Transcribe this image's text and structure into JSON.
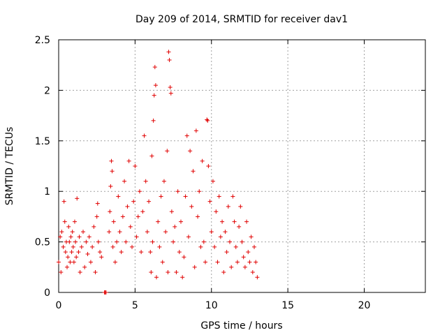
{
  "chart_data": {
    "type": "scatter",
    "title": "Day 209 of 2014, SRMTID for receiver dav1",
    "xlabel": "GPS time / hours",
    "ylabel": "SRMTID / TECUs",
    "xlim": [
      0,
      24
    ],
    "ylim": [
      0,
      2.5
    ],
    "grid": true,
    "marker": "+",
    "marker_color": "#e00000",
    "x_ticks": [
      0,
      5,
      10,
      15,
      20
    ],
    "x_tick_labels": [
      "0",
      "5",
      "10",
      "15",
      "20"
    ],
    "y_ticks": [
      0,
      0.5,
      1,
      1.5,
      2,
      2.5
    ],
    "y_tick_labels": [
      "0",
      "0.5",
      "1",
      "1.5",
      "2",
      "2.5"
    ],
    "series": [
      {
        "name": "dav1",
        "x": [
          0.0,
          0.1,
          0.15,
          0.2,
          0.3,
          0.35,
          0.4,
          0.45,
          0.5,
          0.55,
          0.6,
          0.65,
          0.7,
          0.75,
          0.8,
          0.85,
          0.9,
          0.95,
          1.0,
          1.05,
          1.1,
          1.15,
          1.2,
          1.3,
          1.35,
          1.4,
          1.5,
          1.6,
          1.7,
          1.8,
          1.9,
          2.0,
          2.1,
          2.2,
          2.3,
          2.4,
          2.5,
          2.55,
          2.6,
          2.7,
          2.8,
          3.0,
          3.05,
          3.1,
          3.3,
          3.35,
          3.4,
          3.45,
          3.5,
          3.55,
          3.6,
          3.7,
          3.8,
          3.9,
          4.0,
          4.1,
          4.2,
          4.3,
          4.4,
          4.5,
          4.6,
          4.7,
          4.8,
          4.9,
          5.0,
          5.1,
          5.2,
          5.3,
          5.4,
          5.5,
          5.6,
          5.7,
          5.8,
          5.9,
          6.0,
          6.05,
          6.1,
          6.15,
          6.2,
          6.25,
          6.3,
          6.35,
          6.4,
          6.5,
          6.6,
          6.7,
          6.8,
          6.9,
          7.0,
          7.1,
          7.15,
          7.2,
          7.25,
          7.3,
          7.35,
          7.4,
          7.5,
          7.6,
          7.7,
          7.8,
          7.9,
          8.0,
          8.1,
          8.2,
          8.3,
          8.4,
          8.5,
          8.6,
          8.7,
          8.8,
          8.9,
          9.0,
          9.1,
          9.2,
          9.3,
          9.4,
          9.5,
          9.6,
          9.7,
          9.75,
          9.8,
          9.9,
          10.0,
          10.1,
          10.2,
          10.3,
          10.4,
          10.5,
          10.6,
          10.7,
          10.8,
          10.9,
          11.0,
          11.1,
          11.2,
          11.3,
          11.4,
          11.5,
          11.6,
          11.7,
          11.8,
          11.9,
          12.0,
          12.1,
          12.2,
          12.3,
          12.4,
          12.5,
          12.6,
          12.7,
          12.8,
          12.9,
          13.0
        ],
        "y": [
          0.3,
          0.55,
          0.2,
          0.6,
          0.45,
          0.9,
          0.7,
          0.4,
          0.5,
          0.25,
          0.35,
          0.65,
          0.5,
          0.3,
          0.55,
          0.4,
          0.6,
          0.45,
          0.3,
          0.7,
          0.5,
          0.35,
          0.93,
          0.4,
          0.55,
          0.2,
          0.45,
          0.6,
          0.25,
          0.5,
          0.38,
          0.55,
          0.3,
          0.45,
          0.65,
          0.2,
          0.75,
          0.88,
          0.5,
          0.4,
          0.35,
          0.0,
          0.0,
          0.0,
          0.6,
          0.8,
          1.05,
          1.3,
          1.2,
          0.45,
          0.7,
          0.3,
          0.5,
          0.95,
          0.6,
          0.4,
          0.75,
          1.1,
          0.5,
          0.85,
          1.3,
          0.65,
          0.45,
          0.9,
          1.25,
          0.55,
          0.75,
          1.0,
          0.4,
          0.8,
          1.55,
          1.1,
          0.6,
          0.9,
          0.4,
          0.2,
          1.35,
          0.5,
          1.7,
          1.95,
          2.23,
          2.05,
          0.15,
          0.7,
          0.45,
          0.95,
          0.3,
          1.1,
          0.6,
          1.4,
          0.2,
          2.38,
          2.3,
          2.03,
          1.97,
          0.8,
          0.5,
          0.65,
          0.2,
          1.0,
          0.4,
          0.7,
          0.15,
          0.35,
          0.95,
          1.55,
          0.55,
          1.4,
          0.85,
          1.2,
          0.25,
          1.6,
          0.75,
          1.0,
          0.45,
          1.3,
          0.5,
          0.3,
          1.71,
          1.7,
          1.25,
          0.9,
          0.6,
          1.1,
          0.45,
          0.8,
          0.3,
          0.95,
          0.55,
          0.7,
          0.2,
          0.6,
          0.4,
          0.85,
          0.5,
          0.25,
          0.95,
          0.7,
          0.45,
          0.3,
          0.65,
          0.85,
          0.5,
          0.35,
          0.25,
          0.7,
          0.4,
          0.3,
          0.55,
          0.2,
          0.45,
          0.3,
          0.15
        ]
      }
    ]
  }
}
